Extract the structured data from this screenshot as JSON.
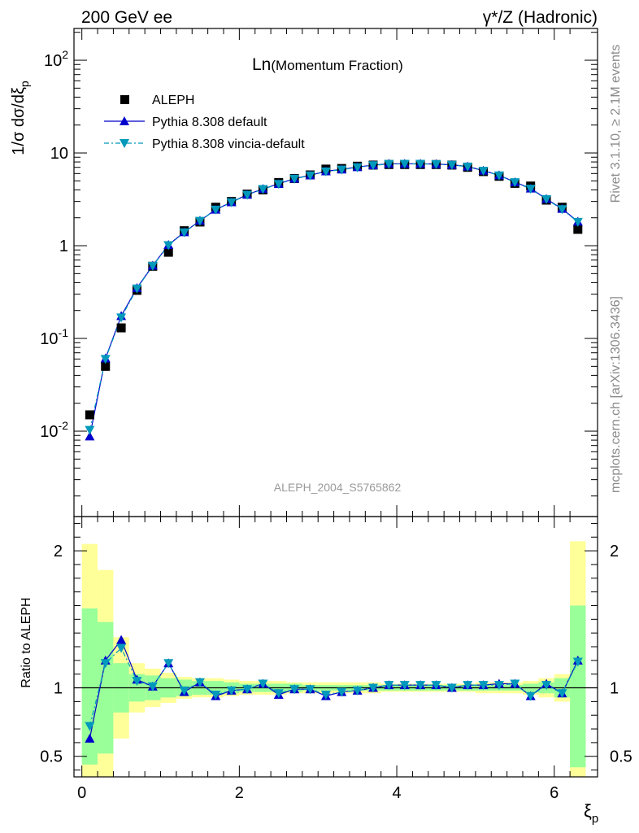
{
  "header": {
    "left": "200 GeV ee",
    "right": "γ*/Z (Hadronic)"
  },
  "side_text": {
    "top": "Rivet 3.1.10, ≥ 2.1M events",
    "bottom": "mcplots.cern.ch [arXiv:1306.3436]"
  },
  "chart_data": {
    "type": "scatter",
    "title": "Ln(Momentum Fraction)",
    "title_main": "Ln",
    "title_sub": "(Momentum Fraction)",
    "watermark": "ALEPH_2004_S5765862",
    "legend_placement": "top-left",
    "xlabel": "ξp",
    "x_label_main": "ξ",
    "x_label_sub": "p",
    "ylabel": "1/σ dσ/dξp",
    "y_label_prefix": "1/σ dσ/dξ",
    "y_label_sub": "p",
    "ratio_ylabel": "Ratio to ALEPH",
    "xlim": [
      -0.1,
      6.55
    ],
    "ylim": [
      0.0012,
      220
    ],
    "yscale": "log",
    "ratio_ylim": [
      0.35,
      2.25
    ],
    "x_ticks": [
      "0",
      "2",
      "4",
      "6"
    ],
    "y_ticks": [
      "10^-2",
      "10^-1",
      "1",
      "10",
      "10^2"
    ],
    "ratio_ticks": [
      "0.5",
      "1",
      "2"
    ],
    "x": [
      0.1,
      0.3,
      0.5,
      0.7,
      0.9,
      1.1,
      1.3,
      1.5,
      1.7,
      1.9,
      2.1,
      2.3,
      2.5,
      2.7,
      2.9,
      3.1,
      3.3,
      3.5,
      3.7,
      3.9,
      4.1,
      4.3,
      4.5,
      4.7,
      4.9,
      5.1,
      5.3,
      5.5,
      5.7,
      5.9,
      6.1,
      6.3
    ],
    "bin_edges": [
      0.0,
      0.2,
      0.4,
      0.6,
      0.8,
      1.0,
      1.2,
      1.4,
      1.6,
      1.8,
      2.0,
      2.2,
      2.4,
      2.6,
      2.8,
      3.0,
      3.2,
      3.4,
      3.6,
      3.8,
      4.0,
      4.2,
      4.4,
      4.6,
      4.8,
      5.0,
      5.2,
      5.4,
      5.6,
      5.8,
      6.0,
      6.2,
      6.4
    ],
    "series": [
      {
        "name": "ALEPH",
        "color": "#000000",
        "marker": "square",
        "values": [
          0.015,
          0.05,
          0.13,
          0.33,
          0.6,
          0.85,
          1.45,
          1.8,
          2.6,
          3.0,
          3.6,
          4.0,
          4.8,
          5.3,
          5.8,
          6.7,
          6.8,
          7.2,
          7.4,
          7.5,
          7.5,
          7.5,
          7.5,
          7.4,
          7.0,
          6.3,
          5.6,
          4.7,
          4.4,
          3.1,
          2.6,
          1.5
        ]
      },
      {
        "name": "Pythia 8.308 default",
        "color": "#0000cc",
        "marker": "triangle-up",
        "line": "solid",
        "values": [
          0.0088,
          0.061,
          0.175,
          0.35,
          0.61,
          1.02,
          1.4,
          1.86,
          2.45,
          2.95,
          3.55,
          4.1,
          4.65,
          5.3,
          5.75,
          6.35,
          6.65,
          7.05,
          7.4,
          7.65,
          7.65,
          7.65,
          7.6,
          7.45,
          7.15,
          6.45,
          5.75,
          4.85,
          4.15,
          3.2,
          2.5,
          1.82
        ]
      },
      {
        "name": "Pythia 8.308 vincia-default",
        "color": "#0099bb",
        "marker": "triangle-down",
        "line": "dashdot",
        "values": [
          0.0103,
          0.06,
          0.168,
          0.345,
          0.605,
          1.01,
          1.39,
          1.85,
          2.44,
          2.93,
          3.53,
          4.07,
          4.62,
          5.26,
          5.72,
          6.3,
          6.6,
          7.0,
          7.35,
          7.6,
          7.62,
          7.62,
          7.57,
          7.42,
          7.12,
          6.42,
          5.72,
          4.82,
          4.1,
          3.17,
          2.47,
          1.8
        ]
      }
    ],
    "ratio_series": [
      {
        "name": "Pythia 8.308 default",
        "color": "#0000cc",
        "values": [
          0.63,
          1.2,
          1.35,
          1.06,
          1.01,
          1.18,
          0.97,
          1.04,
          0.94,
          0.98,
          0.99,
          1.03,
          0.95,
          0.99,
          0.99,
          0.94,
          0.97,
          0.98,
          1.0,
          1.02,
          1.02,
          1.02,
          1.02,
          1.0,
          1.02,
          1.02,
          1.03,
          1.03,
          0.94,
          1.03,
          0.96,
          1.2
        ]
      },
      {
        "name": "Pythia 8.308 vincia-default",
        "color": "#0099bb",
        "values": [
          0.72,
          1.18,
          1.29,
          1.05,
          1.01,
          1.18,
          0.98,
          1.04,
          0.95,
          0.98,
          0.99,
          1.03,
          0.96,
          0.99,
          0.99,
          0.95,
          0.97,
          0.98,
          1.0,
          1.02,
          1.02,
          1.02,
          1.02,
          1.0,
          1.02,
          1.02,
          1.02,
          1.03,
          0.94,
          1.02,
          0.96,
          1.19
        ]
      }
    ],
    "uncertainty_band": {
      "stat_low": [
        0.44,
        0.52,
        0.82,
        0.9,
        0.91,
        0.93,
        0.94,
        0.95,
        0.95,
        0.96,
        0.97,
        0.97,
        0.97,
        0.97,
        0.98,
        0.98,
        0.98,
        0.98,
        0.98,
        0.98,
        0.98,
        0.98,
        0.98,
        0.98,
        0.98,
        0.98,
        0.98,
        0.98,
        0.97,
        0.96,
        0.93,
        0.42
      ],
      "stat_high": [
        1.58,
        1.48,
        1.18,
        1.1,
        1.09,
        1.07,
        1.06,
        1.05,
        1.05,
        1.04,
        1.03,
        1.03,
        1.03,
        1.03,
        1.02,
        1.02,
        1.02,
        1.02,
        1.02,
        1.02,
        1.02,
        1.02,
        1.02,
        1.02,
        1.02,
        1.02,
        1.02,
        1.02,
        1.03,
        1.04,
        1.07,
        1.6
      ],
      "total_low": [
        0.3,
        0.3,
        0.63,
        0.82,
        0.86,
        0.89,
        0.92,
        0.93,
        0.93,
        0.94,
        0.95,
        0.95,
        0.95,
        0.96,
        0.96,
        0.96,
        0.96,
        0.96,
        0.96,
        0.97,
        0.97,
        0.97,
        0.97,
        0.97,
        0.97,
        0.96,
        0.96,
        0.96,
        0.95,
        0.93,
        0.9,
        0.33
      ],
      "total_high": [
        2.05,
        1.86,
        1.37,
        1.18,
        1.14,
        1.11,
        1.08,
        1.07,
        1.07,
        1.06,
        1.05,
        1.05,
        1.05,
        1.04,
        1.04,
        1.04,
        1.04,
        1.04,
        1.04,
        1.03,
        1.03,
        1.03,
        1.03,
        1.03,
        1.03,
        1.04,
        1.04,
        1.04,
        1.05,
        1.07,
        1.1,
        2.07
      ],
      "stat_color": "#99ff99",
      "total_color": "#ffff99"
    }
  }
}
